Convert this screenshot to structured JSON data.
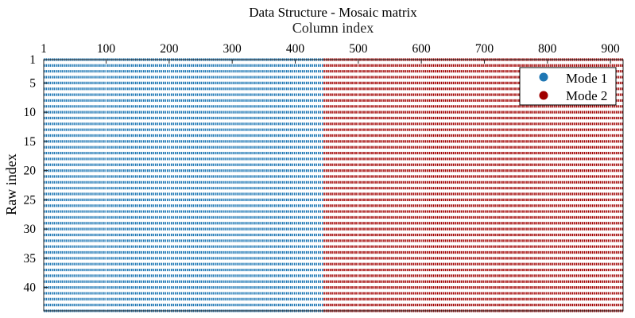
{
  "chart_data": {
    "type": "scatter",
    "title": "Data Structure - Mosaic matrix",
    "xlabel": "Column index",
    "ylabel": "Raw index",
    "x_axis_position": "top",
    "y_axis_direction": "reversed",
    "xlim": [
      1,
      920
    ],
    "ylim": [
      1,
      44
    ],
    "x_ticks": [
      1,
      100,
      200,
      300,
      400,
      500,
      600,
      700,
      800,
      900
    ],
    "y_ticks": [
      1,
      5,
      10,
      15,
      20,
      25,
      30,
      35,
      40
    ],
    "grid": true,
    "legend_position": "top-right",
    "series": [
      {
        "name": "Mode 1",
        "color": "#1f77b4",
        "columns": [
          1,
          444
        ],
        "rows": [
          1,
          44
        ]
      },
      {
        "name": "Mode 2",
        "color": "#a00000",
        "columns": [
          445,
          920
        ],
        "rows": [
          1,
          44
        ]
      }
    ]
  }
}
